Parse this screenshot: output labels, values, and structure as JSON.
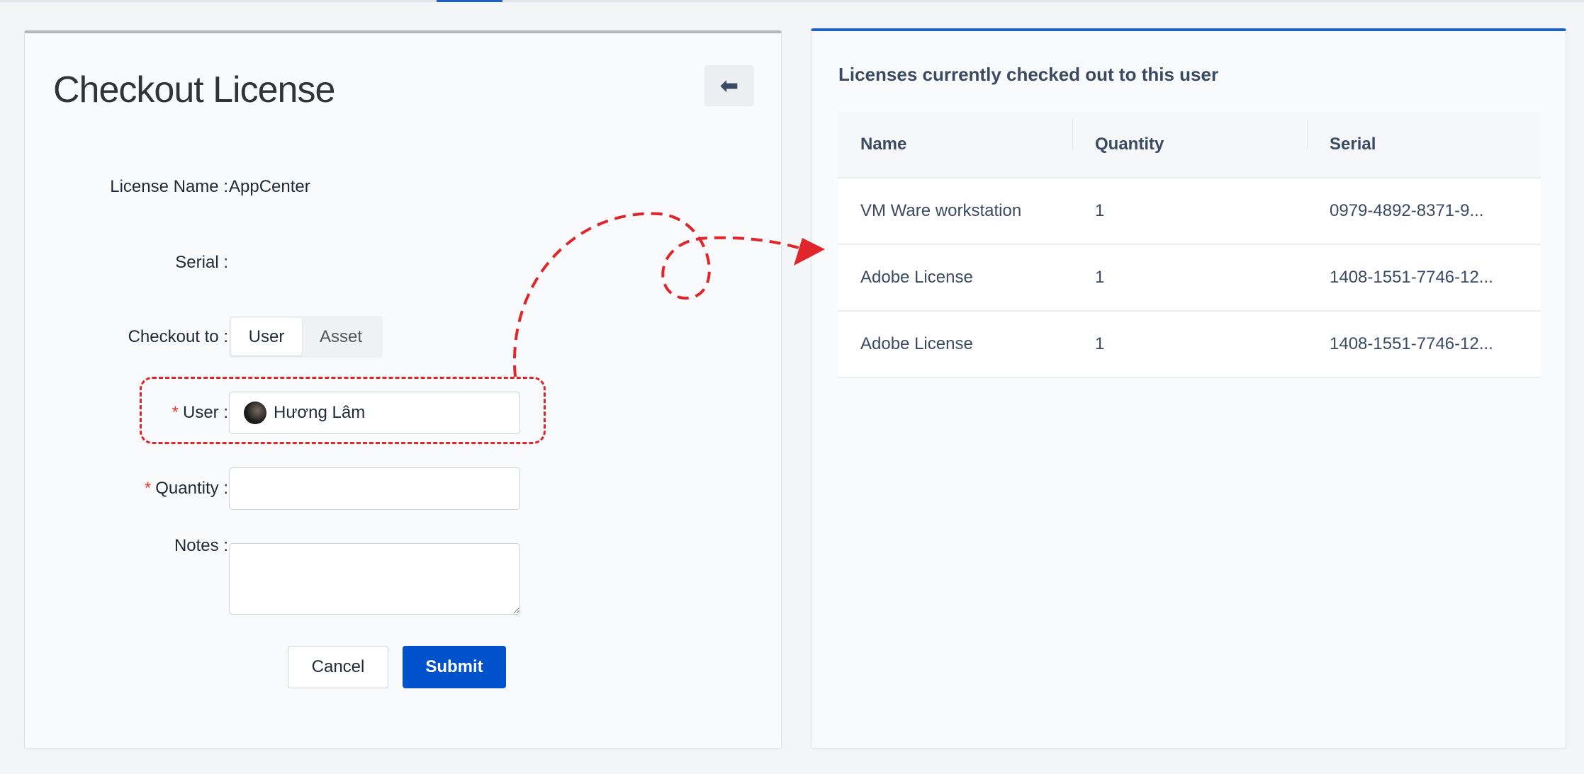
{
  "form": {
    "title": "Checkout License",
    "back_icon": "arrow-left-icon",
    "license_name_label": "License Name",
    "license_name_value": "AppCenter",
    "serial_label": "Serial",
    "serial_value": "",
    "checkout_to_label": "Checkout to",
    "checkout_options": [
      "User",
      "Asset"
    ],
    "checkout_selected": "User",
    "user_label": "User",
    "user_value": "Hương Lâm",
    "quantity_label": "Quantity",
    "quantity_value": "",
    "notes_label": "Notes",
    "notes_value": "",
    "required_mark": "*",
    "colon": ":",
    "cancel_label": "Cancel",
    "submit_label": "Submit"
  },
  "panel": {
    "heading": "Licenses currently checked out to this user",
    "columns": [
      "Name",
      "Quantity",
      "Serial"
    ],
    "rows": [
      {
        "name": "VM Ware workstation",
        "quantity": "1",
        "serial": "0979-4892-8371-9..."
      },
      {
        "name": "Adobe License",
        "quantity": "1",
        "serial": "1408-1551-7746-12..."
      },
      {
        "name": "Adobe License",
        "quantity": "1",
        "serial": "1408-1551-7746-12..."
      }
    ]
  },
  "colors": {
    "primary": "#0052cc",
    "annotation": "#e0262b",
    "heading": "#3b4a63"
  }
}
